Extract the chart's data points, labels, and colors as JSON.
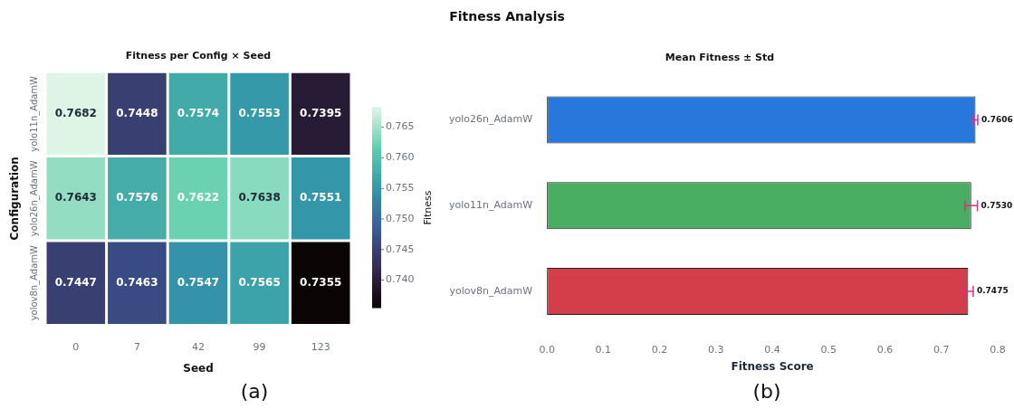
{
  "chart_data": [
    {
      "type": "heatmap",
      "title": "Fitness per Config × Seed",
      "xlabel": "Seed",
      "ylabel": "Configuration",
      "clabel": "Fitness",
      "categories": [
        "0",
        "7",
        "42",
        "99",
        "123"
      ],
      "y_categories": [
        "yolo11n_AdamW",
        "yolo26n_AdamW",
        "yolov8n_AdamW"
      ],
      "cells": [
        [
          0.7682,
          0.7448,
          0.7574,
          0.7553,
          0.7395
        ],
        [
          0.7643,
          0.7576,
          0.7622,
          0.7638,
          0.7551
        ],
        [
          0.7447,
          0.7463,
          0.7547,
          0.7565,
          0.7355
        ]
      ],
      "clim": [
        0.7355,
        0.7682
      ],
      "cticks": [
        {
          "value": 0.74,
          "label": "0.740"
        },
        {
          "value": 0.745,
          "label": "0.745"
        },
        {
          "value": 0.75,
          "label": "0.750"
        },
        {
          "value": 0.755,
          "label": "0.755"
        },
        {
          "value": 0.76,
          "label": "0.760"
        },
        {
          "value": 0.765,
          "label": "0.765"
        }
      ],
      "data_labels": true,
      "annotations": [
        "Fitness Analysis",
        "(a)"
      ]
    },
    {
      "type": "bar",
      "orientation": "horizontal",
      "title": "Mean Fitness ± Std",
      "xlabel": "Fitness Score",
      "categories": [
        "yolo26n_AdamW",
        "yolo11n_AdamW",
        "yolov8n_AdamW"
      ],
      "values": [
        0.7606,
        0.753,
        0.7475
      ],
      "colors": [
        "#2878dc",
        "#4aae62",
        "#d43d4a"
      ],
      "errors": [
        0.004,
        0.011,
        0.009
      ],
      "value_labels": [
        "0.7606",
        "0.7530",
        "0.7475"
      ],
      "xlim": [
        0,
        0.8
      ],
      "xticks": [
        {
          "value": 0,
          "label": "0.0"
        },
        {
          "value": 0.1,
          "label": "0.1"
        },
        {
          "value": 0.2,
          "label": "0.2"
        },
        {
          "value": 0.3,
          "label": "0.3"
        },
        {
          "value": 0.4,
          "label": "0.4"
        },
        {
          "value": 0.5,
          "label": "0.5"
        },
        {
          "value": 0.6,
          "label": "0.6"
        },
        {
          "value": 0.7,
          "label": "0.7"
        },
        {
          "value": 0.8,
          "label": "0.8"
        }
      ],
      "annotations": [
        "(b)"
      ]
    }
  ]
}
